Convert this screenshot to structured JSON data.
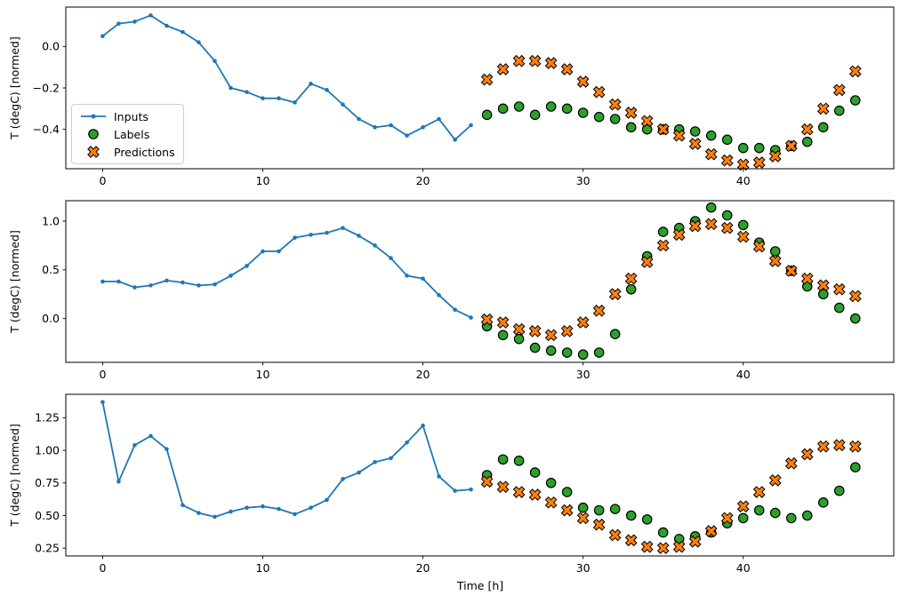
{
  "ylabel": "T (degC) [normed]",
  "xlabel": "Time [h]",
  "colors": {
    "inputs": "#1f77b4",
    "labels": "#2ca02c",
    "predictions": "#ff7f0e",
    "edge": "#000000",
    "spine": "#000000",
    "text": "#000000",
    "legend_border": "#cccccc",
    "background": "#ffffff"
  },
  "legend": {
    "items": [
      {
        "label": "Inputs",
        "marker": "line-dot",
        "color": "#1f77b4"
      },
      {
        "label": "Labels",
        "marker": "circle",
        "color": "#2ca02c"
      },
      {
        "label": "Predictions",
        "marker": "x",
        "color": "#ff7f0e"
      }
    ]
  },
  "chart_data": [
    {
      "type": "line+scatter",
      "title": "",
      "xlabel": "",
      "ylabel": "T (degC) [normed]",
      "xlim": [
        -2.3,
        49.4
      ],
      "ylim": [
        -0.59,
        0.19
      ],
      "xticks": [
        0,
        10,
        20,
        30,
        40
      ],
      "xtick_labels": [
        "0",
        "10",
        "20",
        "30",
        "40"
      ],
      "ytick_values": [
        0.0,
        -0.2,
        -0.4
      ],
      "ytick_labels": [
        "0.0",
        "−0.2",
        "−0.4"
      ],
      "grid": false,
      "legend": true,
      "series": [
        {
          "name": "Inputs",
          "style": "line-dot",
          "color": "#1f77b4",
          "x": [
            0,
            1,
            2,
            3,
            4,
            5,
            6,
            7,
            8,
            9,
            10,
            11,
            12,
            13,
            14,
            15,
            16,
            17,
            18,
            19,
            20,
            21,
            22,
            23
          ],
          "y": [
            0.05,
            0.11,
            0.12,
            0.15,
            0.1,
            0.07,
            0.02,
            -0.07,
            -0.2,
            -0.22,
            -0.25,
            -0.25,
            -0.27,
            -0.18,
            -0.21,
            -0.28,
            -0.35,
            -0.39,
            -0.38,
            -0.43,
            -0.39,
            -0.35,
            -0.45,
            -0.38
          ]
        },
        {
          "name": "Labels",
          "style": "scatter-circle",
          "color": "#2ca02c",
          "x": [
            24,
            25,
            26,
            27,
            28,
            29,
            30,
            31,
            32,
            33,
            34,
            35,
            36,
            37,
            38,
            39,
            40,
            41,
            42,
            43,
            44,
            45,
            46,
            47
          ],
          "y": [
            -0.33,
            -0.3,
            -0.29,
            -0.33,
            -0.29,
            -0.3,
            -0.32,
            -0.34,
            -0.35,
            -0.39,
            -0.4,
            -0.4,
            -0.4,
            -0.41,
            -0.43,
            -0.45,
            -0.49,
            -0.49,
            -0.5,
            -0.48,
            -0.46,
            -0.39,
            -0.31,
            -0.26
          ]
        },
        {
          "name": "Predictions",
          "style": "scatter-x",
          "color": "#ff7f0e",
          "x": [
            24,
            25,
            26,
            27,
            28,
            29,
            30,
            31,
            32,
            33,
            34,
            35,
            36,
            37,
            38,
            39,
            40,
            41,
            42,
            43,
            44,
            45,
            46,
            47
          ],
          "y": [
            -0.16,
            -0.11,
            -0.07,
            -0.07,
            -0.08,
            -0.11,
            -0.17,
            -0.22,
            -0.28,
            -0.32,
            -0.36,
            -0.4,
            -0.43,
            -0.47,
            -0.52,
            -0.55,
            -0.57,
            -0.56,
            -0.53,
            -0.48,
            -0.4,
            -0.3,
            -0.21,
            -0.12
          ]
        }
      ]
    },
    {
      "type": "line+scatter",
      "title": "",
      "xlabel": "",
      "ylabel": "T (degC) [normed]",
      "xlim": [
        -2.3,
        49.4
      ],
      "ylim": [
        -0.45,
        1.21
      ],
      "xticks": [
        0,
        10,
        20,
        30,
        40
      ],
      "xtick_labels": [
        "0",
        "10",
        "20",
        "30",
        "40"
      ],
      "ytick_values": [
        1.0,
        0.5,
        0.0
      ],
      "ytick_labels": [
        "1.0",
        "0.5",
        "0.0"
      ],
      "grid": false,
      "legend": false,
      "series": [
        {
          "name": "Inputs",
          "style": "line-dot",
          "color": "#1f77b4",
          "x": [
            0,
            1,
            2,
            3,
            4,
            5,
            6,
            7,
            8,
            9,
            10,
            11,
            12,
            13,
            14,
            15,
            16,
            17,
            18,
            19,
            20,
            21,
            22,
            23
          ],
          "y": [
            0.38,
            0.38,
            0.32,
            0.34,
            0.39,
            0.37,
            0.34,
            0.35,
            0.44,
            0.54,
            0.69,
            0.69,
            0.83,
            0.86,
            0.88,
            0.93,
            0.85,
            0.75,
            0.62,
            0.44,
            0.41,
            0.24,
            0.09,
            0.01
          ]
        },
        {
          "name": "Labels",
          "style": "scatter-circle",
          "color": "#2ca02c",
          "x": [
            24,
            25,
            26,
            27,
            28,
            29,
            30,
            31,
            32,
            33,
            34,
            35,
            36,
            37,
            38,
            39,
            40,
            41,
            42,
            43,
            44,
            45,
            46,
            47
          ],
          "y": [
            -0.08,
            -0.17,
            -0.21,
            -0.3,
            -0.33,
            -0.35,
            -0.37,
            -0.35,
            -0.16,
            0.3,
            0.64,
            0.89,
            0.93,
            1.0,
            1.14,
            1.06,
            0.96,
            0.78,
            0.69,
            0.49,
            0.33,
            0.25,
            0.11,
            0.0
          ]
        },
        {
          "name": "Predictions",
          "style": "scatter-x",
          "color": "#ff7f0e",
          "x": [
            24,
            25,
            26,
            27,
            28,
            29,
            30,
            31,
            32,
            33,
            34,
            35,
            36,
            37,
            38,
            39,
            40,
            41,
            42,
            43,
            44,
            45,
            46,
            47
          ],
          "y": [
            -0.01,
            -0.04,
            -0.11,
            -0.13,
            -0.17,
            -0.13,
            -0.04,
            0.08,
            0.25,
            0.41,
            0.58,
            0.75,
            0.86,
            0.95,
            0.97,
            0.93,
            0.84,
            0.74,
            0.59,
            0.49,
            0.41,
            0.34,
            0.3,
            0.23
          ]
        }
      ]
    },
    {
      "type": "line+scatter",
      "title": "",
      "xlabel": "Time [h]",
      "ylabel": "T (degC) [normed]",
      "xlim": [
        -2.3,
        49.4
      ],
      "ylim": [
        0.19,
        1.43
      ],
      "xticks": [
        0,
        10,
        20,
        30,
        40
      ],
      "xtick_labels": [
        "0",
        "10",
        "20",
        "30",
        "40"
      ],
      "ytick_values": [
        1.25,
        1.0,
        0.75,
        0.5,
        0.25
      ],
      "ytick_labels": [
        "1.25",
        "1.00",
        "0.75",
        "0.50",
        "0.25"
      ],
      "grid": false,
      "legend": false,
      "series": [
        {
          "name": "Inputs",
          "style": "line-dot",
          "color": "#1f77b4",
          "x": [
            0,
            1,
            2,
            3,
            4,
            5,
            6,
            7,
            8,
            9,
            10,
            11,
            12,
            13,
            14,
            15,
            16,
            17,
            18,
            19,
            20,
            21,
            22,
            23
          ],
          "y": [
            1.37,
            0.76,
            1.04,
            1.11,
            1.01,
            0.58,
            0.52,
            0.49,
            0.53,
            0.56,
            0.57,
            0.55,
            0.51,
            0.56,
            0.62,
            0.78,
            0.83,
            0.91,
            0.94,
            1.06,
            1.19,
            0.8,
            0.69,
            0.7
          ]
        },
        {
          "name": "Labels",
          "style": "scatter-circle",
          "color": "#2ca02c",
          "x": [
            24,
            25,
            26,
            27,
            28,
            29,
            30,
            31,
            32,
            33,
            34,
            35,
            36,
            37,
            38,
            39,
            40,
            41,
            42,
            43,
            44,
            45,
            46,
            47
          ],
          "y": [
            0.81,
            0.93,
            0.92,
            0.83,
            0.75,
            0.68,
            0.56,
            0.54,
            0.55,
            0.5,
            0.47,
            0.37,
            0.32,
            0.34,
            0.37,
            0.44,
            0.48,
            0.54,
            0.52,
            0.48,
            0.5,
            0.6,
            0.69,
            0.87
          ]
        },
        {
          "name": "Predictions",
          "style": "scatter-x",
          "color": "#ff7f0e",
          "x": [
            24,
            25,
            26,
            27,
            28,
            29,
            30,
            31,
            32,
            33,
            34,
            35,
            36,
            37,
            38,
            39,
            40,
            41,
            42,
            43,
            44,
            45,
            46,
            47
          ],
          "y": [
            0.76,
            0.72,
            0.68,
            0.66,
            0.6,
            0.54,
            0.48,
            0.43,
            0.35,
            0.31,
            0.26,
            0.25,
            0.26,
            0.3,
            0.38,
            0.48,
            0.57,
            0.68,
            0.77,
            0.9,
            0.97,
            1.03,
            1.04,
            1.03
          ]
        }
      ]
    }
  ]
}
